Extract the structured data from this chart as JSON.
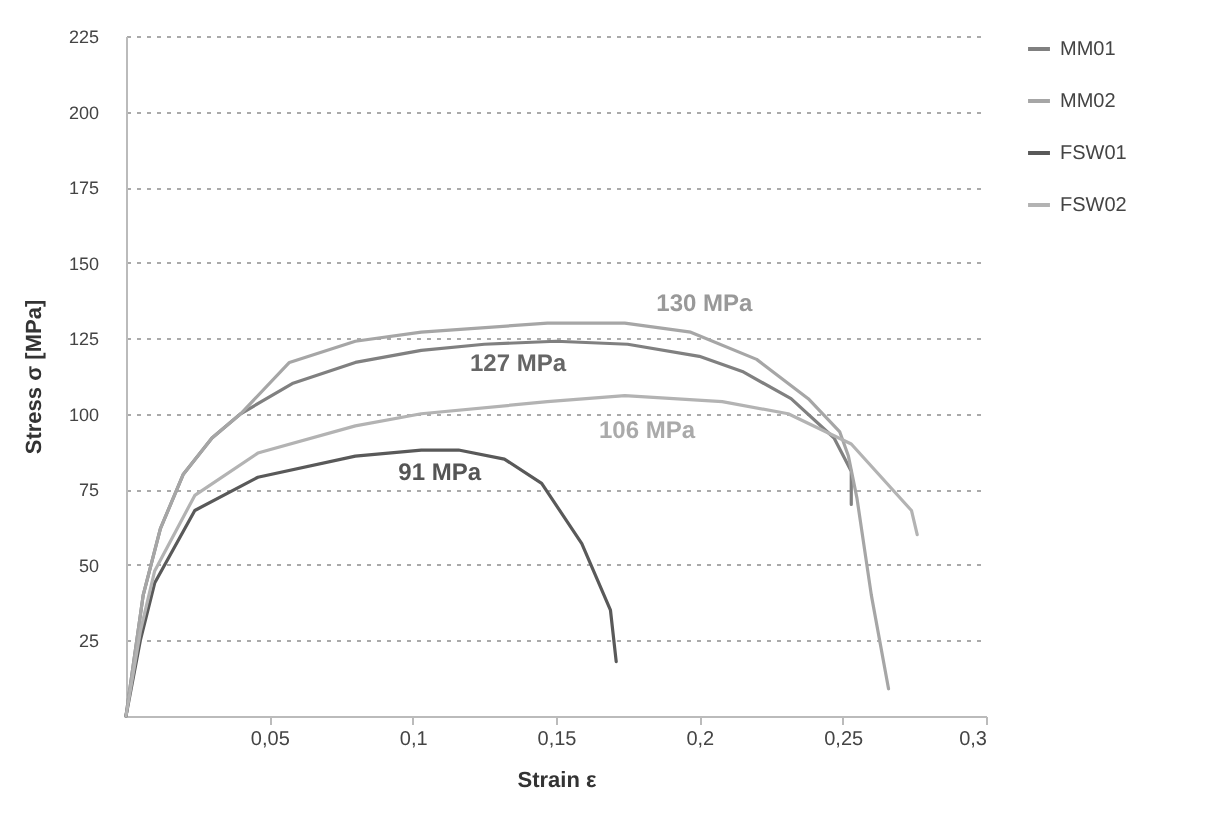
{
  "chart_data": {
    "type": "line",
    "xlabel": "Strain  ε",
    "ylabel": "Stress σ [MPa]",
    "xlim": [
      0,
      0.3
    ],
    "ylim": [
      0,
      225
    ],
    "xticks": [
      {
        "value": 0.05,
        "label": "0,05"
      },
      {
        "value": 0.1,
        "label": "0,1"
      },
      {
        "value": 0.15,
        "label": "0,15"
      },
      {
        "value": 0.2,
        "label": "0,2"
      },
      {
        "value": 0.25,
        "label": "0,25"
      },
      {
        "value": 0.3,
        "label": "0,3"
      }
    ],
    "yticks": [
      25,
      50,
      75,
      100,
      125,
      150,
      175,
      200,
      225
    ],
    "grid": "y",
    "legend": "right",
    "marker": "none",
    "line_style": "solid",
    "series": [
      {
        "name": "MM01",
        "color": "#808080",
        "x": [
          0,
          0.006,
          0.012,
          0.02,
          0.03,
          0.04,
          0.058,
          0.08,
          0.103,
          0.125,
          0.15,
          0.175,
          0.2,
          0.215,
          0.232,
          0.247,
          0.253,
          0.253
        ],
        "values": [
          0,
          40,
          62,
          80,
          92,
          100,
          110,
          117,
          121,
          123,
          124,
          123,
          119,
          114,
          105,
          92,
          81,
          70
        ]
      },
      {
        "name": "MM02",
        "color": "#a6a6a6",
        "x": [
          0,
          0.006,
          0.012,
          0.02,
          0.03,
          0.04,
          0.057,
          0.08,
          0.103,
          0.147,
          0.174,
          0.197,
          0.22,
          0.238,
          0.249,
          0.252,
          0.255,
          0.26,
          0.266
        ],
        "values": [
          0,
          40,
          62,
          80,
          92,
          100,
          117,
          124,
          127,
          130,
          130,
          127,
          118,
          105,
          94,
          86,
          72,
          40,
          9
        ]
      },
      {
        "name": "FSW01",
        "color": "#595959",
        "x": [
          0,
          0.005,
          0.01,
          0.024,
          0.046,
          0.08,
          0.103,
          0.116,
          0.132,
          0.145,
          0.159,
          0.169,
          0.171
        ],
        "values": [
          0,
          25,
          44,
          68,
          79,
          86,
          88,
          88,
          85,
          77,
          57,
          35,
          18
        ]
      },
      {
        "name": "FSW02",
        "color": "#b3b3b3",
        "x": [
          0,
          0.005,
          0.01,
          0.024,
          0.046,
          0.08,
          0.103,
          0.147,
          0.174,
          0.208,
          0.231,
          0.253,
          0.274,
          0.276
        ],
        "values": [
          0,
          28,
          48,
          73,
          87,
          96,
          100,
          104,
          106,
          104,
          100,
          90,
          68,
          60
        ]
      }
    ],
    "annotations": [
      {
        "text": "130 MPa",
        "x": 0.185,
        "y": 130
      },
      {
        "text": "127 MPa",
        "x": 0.12,
        "y": 124
      },
      {
        "text": "106 MPa",
        "x": 0.165,
        "y": 106
      },
      {
        "text": "91 MPa",
        "x": 0.095,
        "y": 88
      }
    ]
  }
}
